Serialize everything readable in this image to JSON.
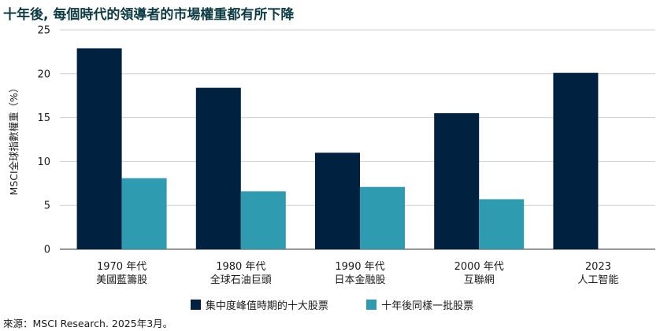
{
  "chart_data": {
    "type": "bar",
    "title": "十年後, 每個時代的領導者的市場權重都有所下降",
    "ylabel": "MSCI全球指數權重（%）",
    "xlabel": "",
    "ylim": [
      0,
      25
    ],
    "yticks": [
      0,
      5,
      10,
      15,
      20,
      25
    ],
    "grid": true,
    "legend_position": "bottom",
    "categories": [
      [
        "1970 年代",
        "美國藍籌股"
      ],
      [
        "1980 年代",
        "全球石油巨頭"
      ],
      [
        "1990 年代",
        "日本金融股"
      ],
      [
        "2000 年代",
        "互聯網"
      ],
      [
        "2023",
        "人工智能"
      ]
    ],
    "series": [
      {
        "name": "集中度峰值時期的十大股票",
        "color": "#002240",
        "values": [
          22.9,
          18.4,
          11.0,
          15.5,
          20.1
        ]
      },
      {
        "name": "十年後同樣一批股票",
        "color": "#2e9bb0",
        "values": [
          8.1,
          6.6,
          7.1,
          5.7,
          null
        ]
      }
    ]
  },
  "source": "來源：MSCI Research. 2025年3月。"
}
